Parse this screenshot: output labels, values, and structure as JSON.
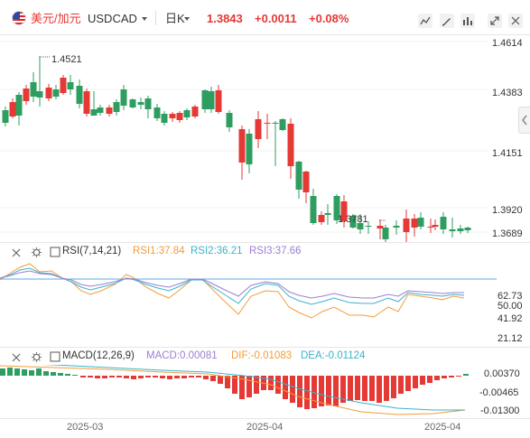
{
  "header": {
    "pair_cn": "美元/加元",
    "pair_code": "USDCAD",
    "period": "日K",
    "price": "1.3843",
    "change": "+0.0011",
    "change_pct": "+0.08%",
    "icons": [
      "chart-style-icon",
      "drawing-icon",
      "settings-icon",
      "fullscreen-icon",
      "more-icon"
    ]
  },
  "colors": {
    "up": "#e53935",
    "down": "#2e9e60",
    "accent": "#e53935"
  },
  "main_chart": {
    "y_ticks": [
      "1.4614",
      "1.4383",
      "1.4151",
      "1.3920",
      "1.3689"
    ],
    "high_label": "1.4521",
    "low_label": "1.3781"
  },
  "rsi": {
    "title": "RSI(7,14,21)",
    "rsi1": "RSI1:37.84",
    "rsi2": "RSI2:36.21",
    "rsi3": "RSI3:37.66",
    "y_ticks": [
      "62.73",
      "50.00",
      "41.92",
      "21.12"
    ]
  },
  "macd": {
    "title": "MACD(12,26,9)",
    "macd": "MACD:0.00081",
    "dif": "DIF:-0.01083",
    "dea": "DEA:-0.01124",
    "y_ticks": [
      "0.00370",
      "-0.00465",
      "-0.01300"
    ]
  },
  "x_axis": [
    "2025-03",
    "2025-04",
    "2025-04"
  ]
}
